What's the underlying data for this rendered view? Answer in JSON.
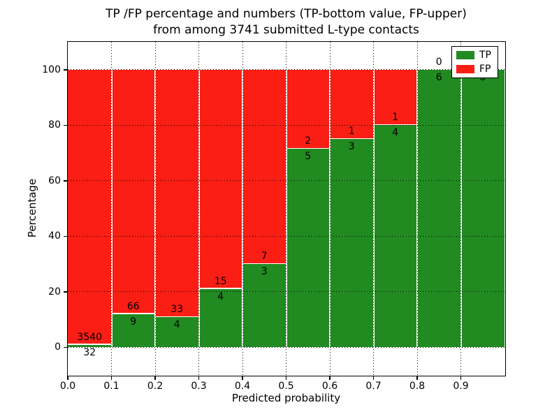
{
  "header": {
    "title_line1": "TP /FP percentage and numbers (TP-bottom value, FP-upper)",
    "title_line2": "from among 3741 submitted L-type contacts"
  },
  "chart_data": {
    "type": "bar",
    "stacked": true,
    "normalized_to_percent": true,
    "title": "TP /FP percentage and numbers (TP-bottom value, FP-upper) from among 3741 submitted L-type contacts",
    "xlabel": "Predicted probability",
    "ylabel": "Percentage",
    "xlim": [
      0.0,
      1.0
    ],
    "ylim": [
      -10,
      110
    ],
    "bin_width": 0.1,
    "bin_starts": [
      0.0,
      0.1,
      0.2,
      0.3,
      0.4,
      0.5,
      0.6,
      0.7,
      0.8,
      0.9
    ],
    "x_tick_values": [
      0.0,
      0.1,
      0.2,
      0.3,
      0.4,
      0.5,
      0.6,
      0.7,
      0.8,
      0.9
    ],
    "x_tick_labels": [
      "0.0",
      "0.1",
      "0.2",
      "0.3",
      "0.4",
      "0.5",
      "0.6",
      "0.7",
      "0.8",
      "0.9"
    ],
    "y_tick_values": [
      0,
      20,
      40,
      60,
      80,
      100
    ],
    "y_tick_labels": [
      "0",
      "20",
      "40",
      "60",
      "80",
      "100"
    ],
    "series": [
      {
        "name": "TP",
        "color": "#218a21",
        "counts": [
          32,
          9,
          4,
          4,
          3,
          5,
          3,
          4,
          6,
          6
        ]
      },
      {
        "name": "FP",
        "color": "#fa1e14",
        "counts": [
          3540,
          66,
          33,
          15,
          7,
          2,
          1,
          1,
          0,
          0
        ]
      }
    ],
    "tp_percent_per_bin": [
      0.9,
      12.0,
      10.8,
      21.1,
      30.0,
      71.4,
      75.0,
      80.0,
      100.0,
      100.0
    ],
    "total_contacts": 3741,
    "grid": {
      "show": true,
      "linestyle": "dotted",
      "color": "#000000"
    },
    "bar_edge_color": "#ffffff",
    "legend": {
      "position": "upper right",
      "entries": [
        {
          "label": "TP",
          "color": "#218a21"
        },
        {
          "label": "FP",
          "color": "#fa1e14"
        }
      ]
    }
  }
}
